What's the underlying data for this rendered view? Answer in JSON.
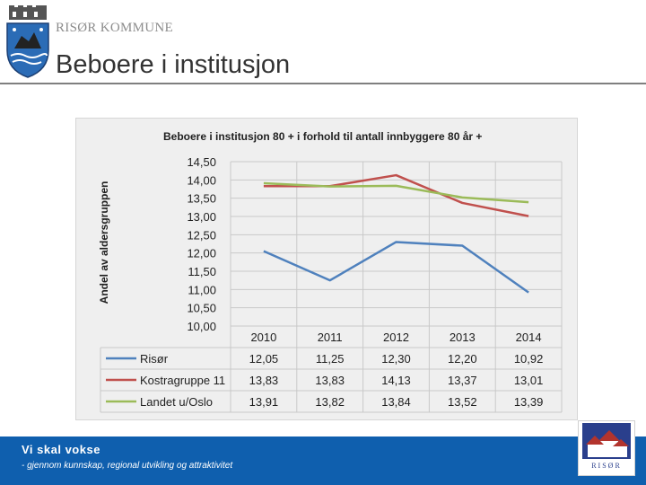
{
  "header": {
    "organization": "RISØR KOMMUNE",
    "title": "Beboere i institusjon"
  },
  "chart_data": {
    "type": "line",
    "title": "Beboere i institusjon 80 + i forhold til antall innbyggere 80 år +",
    "ylabel": "Andel av aldersgruppen",
    "xlabel": "",
    "categories": [
      "2010",
      "2011",
      "2012",
      "2013",
      "2014"
    ],
    "yticks": [
      "14,50",
      "14,00",
      "13,50",
      "13,00",
      "12,50",
      "12,00",
      "11,50",
      "11,00",
      "10,50",
      "10,00"
    ],
    "ylim": [
      10,
      14.5
    ],
    "grid": true,
    "legend": "data-table",
    "series": [
      {
        "name": "Risør",
        "color": "#4f81bd",
        "values": [
          12.05,
          11.25,
          12.3,
          12.2,
          10.92
        ],
        "labels": [
          "12,05",
          "11,25",
          "12,30",
          "12,20",
          "10,92"
        ]
      },
      {
        "name": "Kostragruppe 11",
        "color": "#c0504d",
        "values": [
          13.83,
          13.83,
          14.13,
          13.37,
          13.01
        ],
        "labels": [
          "13,83",
          "13,83",
          "14,13",
          "13,37",
          "13,01"
        ]
      },
      {
        "name": "Landet u/Oslo",
        "color": "#9bbb59",
        "values": [
          13.91,
          13.82,
          13.84,
          13.52,
          13.39
        ],
        "labels": [
          "13,91",
          "13,82",
          "13,84",
          "13,52",
          "13,39"
        ]
      }
    ]
  },
  "footer": {
    "slogan": "Vi skal vokse",
    "subtitle": "- gjennom kunnskap, regional utvikling og attraktivitet",
    "logo_text": "RISØR"
  },
  "colors": {
    "footer_bg": "#0f5fae",
    "crest_blue": "#2b6cb6"
  }
}
